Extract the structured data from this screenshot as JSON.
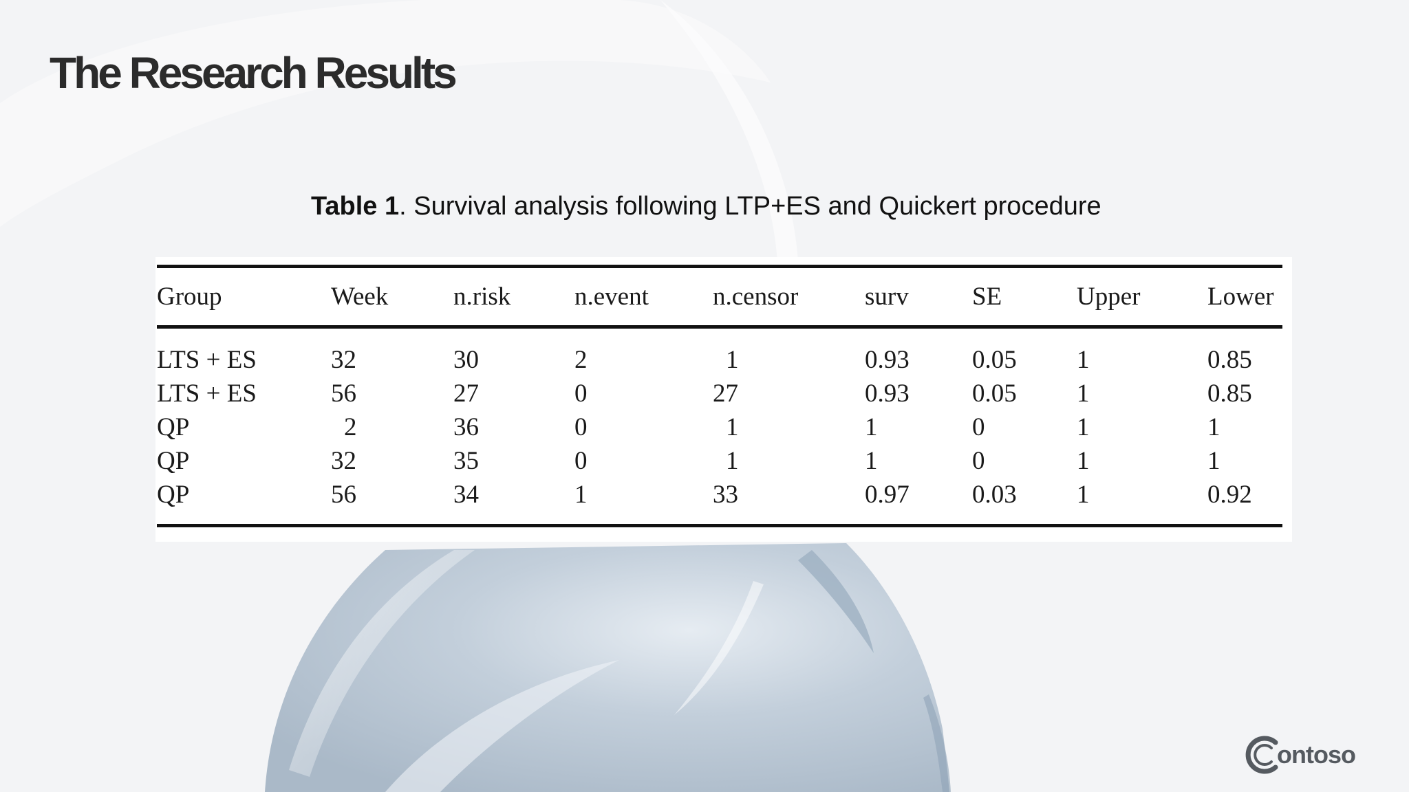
{
  "slide": {
    "title": "The Research Results"
  },
  "caption": {
    "label": "Table 1",
    "text": ". Survival analysis following LTP+ES and Quickert procedure"
  },
  "table": {
    "columns": [
      "Group",
      "Week",
      "n.risk",
      "n.event",
      "n.censor",
      "surv",
      "SE",
      "Upper",
      "Lower"
    ],
    "rows": [
      [
        "LTS + ES",
        "32",
        "30",
        "2",
        "1",
        "0.93",
        "0.05",
        "1",
        "0.85"
      ],
      [
        "LTS + ES",
        "56",
        "27",
        "0",
        "27",
        "0.93",
        "0.05",
        "1",
        "0.85"
      ],
      [
        "QP",
        "2",
        "36",
        "0",
        "1",
        "1",
        "0",
        "1",
        "1"
      ],
      [
        "QP",
        "32",
        "35",
        "0",
        "1",
        "1",
        "0",
        "1",
        "1"
      ],
      [
        "QP",
        "56",
        "34",
        "1",
        "33",
        "0.97",
        "0.03",
        "1",
        "0.92"
      ]
    ]
  },
  "logo": {
    "text": "ontoso",
    "icon": "contoso-c-logo-icon"
  },
  "colors": {
    "title": "#2b2b2b",
    "background": "#f3f4f6",
    "sphere": "#b9c6d3"
  }
}
